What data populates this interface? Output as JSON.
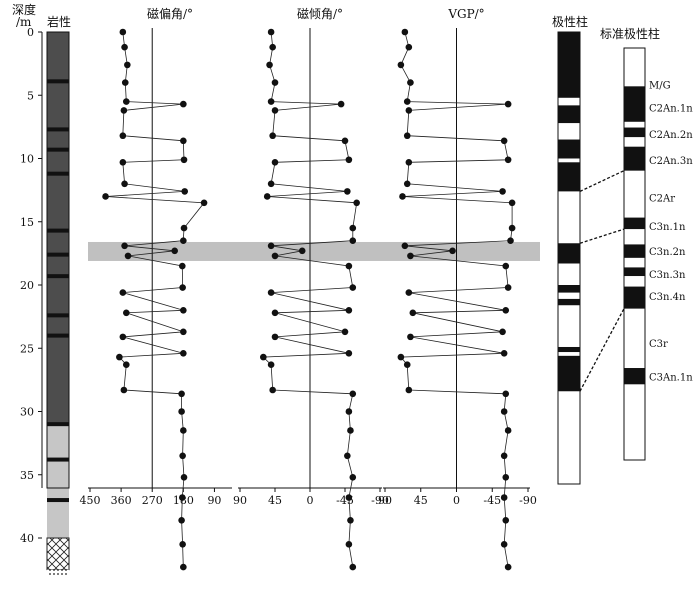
{
  "chart_data": {
    "type": "scatter",
    "depth_axis": {
      "label_line1": "深度",
      "label_line2": "/m",
      "ylim": [
        0,
        43
      ],
      "ticks": [
        "0",
        "5",
        "10",
        "15",
        "20",
        "25",
        "30",
        "35",
        "40"
      ]
    },
    "lithology": {
      "title": "岩性",
      "units": [
        {
          "top": 0,
          "bottom": 31,
          "type": "dark"
        },
        {
          "top": 31,
          "bottom": 40,
          "type": "light"
        },
        {
          "top": 40,
          "bottom": 42.5,
          "type": "cross"
        },
        {
          "top": 42.5,
          "bottom": 43,
          "type": "dots"
        }
      ],
      "dark_bands": [
        3.9,
        7.7,
        9.3,
        11.2,
        15.7,
        17.6,
        19.3,
        22.4,
        24.0,
        31.0,
        33.8,
        37.0
      ]
    },
    "highlight_band": {
      "top": 16.6,
      "bottom": 18.1
    },
    "panels": [
      {
        "title": "磁偏角/°",
        "xlim": [
          450,
          45
        ],
        "ref": 270,
        "ticks": [
          450,
          360,
          270,
          180,
          90
        ],
        "tick_labels": [
          "450",
          "360",
          "270",
          "180",
          "90"
        ]
      },
      {
        "title": "磁倾角/°",
        "xlim": [
          90,
          -90
        ],
        "ref": 0,
        "ticks": [
          90,
          45,
          0,
          -45,
          -90
        ],
        "tick_labels": [
          "90",
          "45",
          "0",
          "-45",
          "-90"
        ]
      },
      {
        "title": "VGP/°",
        "xlim": [
          90,
          -90
        ],
        "ref": 0,
        "ticks": [
          90,
          45,
          0,
          -45,
          -90
        ],
        "tick_labels": [
          "90",
          "45",
          "0",
          "-45",
          "-90"
        ]
      }
    ],
    "series": [
      {
        "name": "",
        "depth": [
          0.0,
          1.2,
          2.6,
          4.0,
          5.5,
          5.7,
          6.2,
          8.2,
          8.6,
          10.1,
          10.3,
          12.0,
          12.6,
          13.0,
          13.5,
          15.5,
          16.5,
          16.9,
          17.3,
          17.7,
          18.5,
          20.2,
          20.6,
          22.0,
          22.2,
          23.7,
          24.1,
          25.4,
          25.7,
          26.3,
          28.3,
          28.6,
          30.0,
          31.5,
          33.5,
          35.2,
          36.8,
          38.6,
          40.5,
          42.3
        ],
        "declination": [
          355,
          350,
          342,
          348,
          345,
          180,
          352,
          355,
          180,
          178,
          355,
          350,
          176,
          405,
          120,
          178,
          180,
          350,
          205,
          340,
          183,
          182,
          355,
          180,
          345,
          180,
          355,
          180,
          365,
          345,
          352,
          185,
          185,
          180,
          182,
          178,
          183,
          185,
          182,
          180
        ],
        "inclination": [
          50,
          48,
          52,
          45,
          50,
          -40,
          45,
          48,
          -45,
          -50,
          45,
          50,
          -48,
          55,
          -60,
          -55,
          -55,
          50,
          10,
          45,
          -50,
          -55,
          50,
          -50,
          45,
          -45,
          45,
          -50,
          60,
          50,
          48,
          -55,
          -50,
          -52,
          -48,
          -55,
          -50,
          -52,
          -50,
          -55
        ],
        "vgp": [
          65,
          60,
          70,
          58,
          62,
          -65,
          60,
          62,
          -60,
          -65,
          60,
          62,
          -58,
          68,
          -70,
          -70,
          -68,
          65,
          5,
          58,
          -62,
          -65,
          60,
          -62,
          55,
          -58,
          58,
          -60,
          70,
          62,
          60,
          -62,
          -60,
          -65,
          -60,
          -62,
          -60,
          -62,
          -60,
          -65
        ]
      }
    ],
    "polarity_column": {
      "title": "极性柱",
      "normal_intervals": [
        [
          0,
          5.2
        ],
        [
          5.8,
          7.2
        ],
        [
          8.5,
          10.0
        ],
        [
          10.3,
          12.6
        ],
        [
          16.7,
          18.3
        ],
        [
          20.0,
          20.6
        ],
        [
          21.1,
          21.6
        ],
        [
          24.9,
          25.3
        ],
        [
          25.6,
          28.4
        ]
      ]
    },
    "standard_column": {
      "title": "标准极性柱",
      "normal_intervals": [
        [
          4.0,
          7.7
        ],
        [
          8.3,
          9.3
        ],
        [
          10.3,
          12.8
        ],
        [
          17.7,
          18.9
        ],
        [
          20.5,
          21.9
        ],
        [
          22.9,
          23.8
        ],
        [
          24.9,
          27.2
        ],
        [
          33.4,
          35.1
        ]
      ],
      "labels": [
        {
          "text": "M/G",
          "depth": 3.8
        },
        {
          "text": "C2An.1n",
          "depth": 6.2
        },
        {
          "text": "C2An.2n",
          "depth": 9.0
        },
        {
          "text": "C2An.3n",
          "depth": 11.7
        },
        {
          "text": "C2Ar",
          "depth": 15.6
        },
        {
          "text": "C3n.1n",
          "depth": 18.6
        },
        {
          "text": "C3n.2n",
          "depth": 21.2
        },
        {
          "text": "C3n.3n",
          "depth": 23.6
        },
        {
          "text": "C3n.4n",
          "depth": 25.9
        },
        {
          "text": "C3r",
          "depth": 30.8
        },
        {
          "text": "C3An.1n",
          "depth": 34.3
        }
      ]
    },
    "correlation_lines": [
      {
        "from": 12.6,
        "to": 12.8
      },
      {
        "from": 16.7,
        "to": 18.9
      },
      {
        "from": 28.4,
        "to": 27.2
      }
    ]
  }
}
